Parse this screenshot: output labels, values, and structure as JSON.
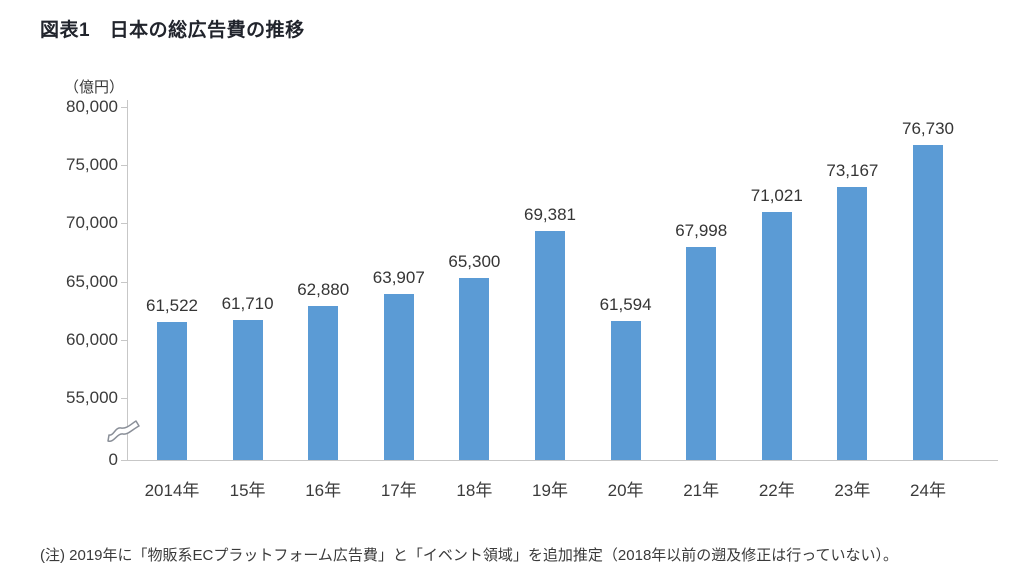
{
  "chart_data": {
    "type": "bar",
    "title": "図表1　日本の総広告費の推移",
    "unit_label": "（億円）",
    "categories": [
      "2014年",
      "15年",
      "16年",
      "17年",
      "18年",
      "19年",
      "20年",
      "21年",
      "22年",
      "23年",
      "24年"
    ],
    "values": [
      61522,
      61710,
      62880,
      63907,
      65300,
      69381,
      61594,
      67998,
      71021,
      73167,
      76730
    ],
    "value_labels": [
      "61,522",
      "61,710",
      "62,880",
      "63,907",
      "65,300",
      "69,381",
      "61,594",
      "67,998",
      "71,021",
      "73,167",
      "76,730"
    ],
    "y_ticks": [
      {
        "label": "80,000",
        "value": 80000
      },
      {
        "label": "75,000",
        "value": 75000
      },
      {
        "label": "70,000",
        "value": 70000
      },
      {
        "label": "65,000",
        "value": 65000
      },
      {
        "label": "60,000",
        "value": 60000
      },
      {
        "label": "55,000",
        "value": 55000
      },
      {
        "label": "0",
        "value": 0
      }
    ],
    "axis_break": "y-axis broken between 0 and 55,000",
    "ylim": [
      55000,
      80000
    ],
    "bar_color": "#5B9BD5",
    "axis_color": "#c7c7c7",
    "xlabel": "",
    "ylabel": "（億円）",
    "legend": "none",
    "grid": "off",
    "note": "(注) 2019年に「物販系ECプラットフォーム広告費」と「イベント領域」を追加推定（2018年以前の遡及修正は行っていない）。"
  }
}
